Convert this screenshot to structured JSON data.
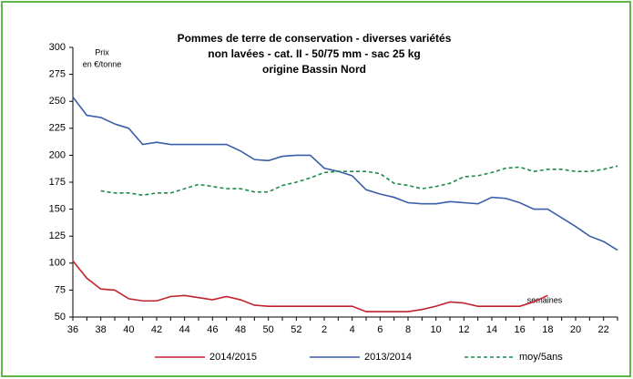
{
  "chart_data": {
    "type": "line",
    "title": [
      "Pommes de terre de conservation - diverses variétés",
      "non lavées - cat. II - 50/75 mm - sac 25 kg",
      "origine Bassin Nord"
    ],
    "y_label": [
      "Prix",
      "en €/tonne"
    ],
    "x_label": "semaines",
    "categories": [
      "36",
      null,
      "38",
      null,
      "40",
      null,
      "42",
      null,
      "44",
      null,
      "46",
      null,
      "48",
      null,
      "50",
      null,
      "52",
      null,
      "2",
      null,
      "4",
      null,
      "6",
      null,
      "8",
      null,
      "10",
      null,
      "12",
      null,
      "14",
      null,
      "16",
      null,
      "18",
      null,
      "20",
      null,
      "22",
      null
    ],
    "series": [
      {
        "name": "2014/2015",
        "color": "#c0232b",
        "dash": false,
        "values": [
          102,
          86,
          76,
          75,
          67,
          65,
          65,
          69,
          70,
          68,
          66,
          69,
          66,
          61,
          60,
          60,
          60,
          60,
          60,
          60,
          60,
          55,
          55,
          55,
          55,
          57,
          60,
          64,
          63,
          60,
          60,
          60,
          60,
          64,
          70,
          null,
          null,
          null,
          null,
          null
        ]
      },
      {
        "name": "2013/2014",
        "color": "#3a5ea8",
        "dash": false,
        "values": [
          254,
          237,
          235,
          229,
          225,
          210,
          212,
          210,
          210,
          210,
          210,
          210,
          204,
          196,
          195,
          199,
          200,
          200,
          188,
          185,
          181,
          168,
          164,
          161,
          156,
          155,
          155,
          157,
          156,
          155,
          161,
          160,
          156,
          150,
          150,
          142,
          134,
          125,
          120,
          112
        ]
      },
      {
        "name": "moy/5ans",
        "color": "#1e8a4a",
        "dash": true,
        "values": [
          null,
          null,
          167,
          165,
          165,
          163,
          165,
          165,
          169,
          173,
          171,
          169,
          169,
          166,
          166,
          172,
          175,
          179,
          184,
          185,
          185,
          185,
          183,
          174,
          172,
          169,
          171,
          174,
          180,
          181,
          184,
          188,
          189,
          185,
          187,
          187,
          185,
          185,
          187,
          190
        ]
      }
    ],
    "ylim": [
      50,
      300
    ],
    "yticks": [
      50,
      75,
      100,
      125,
      150,
      175,
      200,
      225,
      250,
      275,
      300
    ]
  }
}
